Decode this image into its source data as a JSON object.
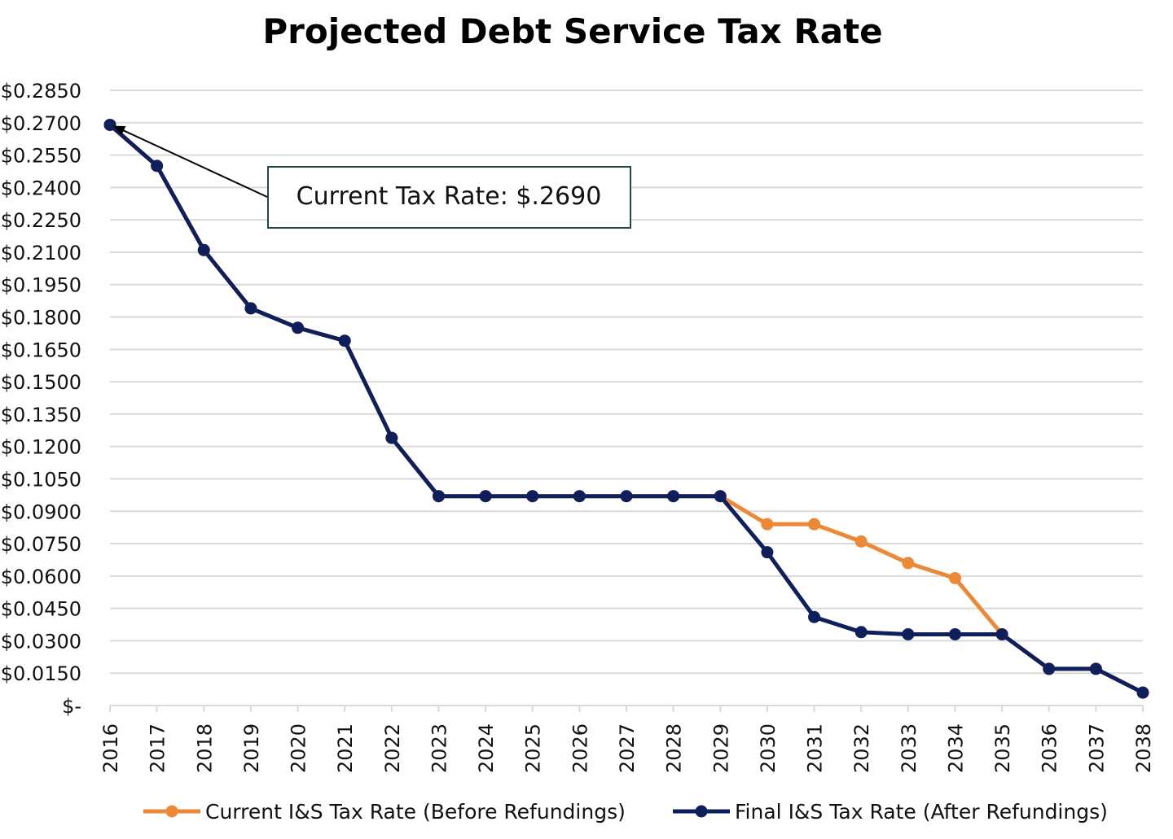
{
  "chart_data": {
    "type": "line",
    "title": "Projected Debt Service Tax Rate",
    "xlabel": "",
    "ylabel": "",
    "categories": [
      "2016",
      "2017",
      "2018",
      "2019",
      "2020",
      "2021",
      "2022",
      "2023",
      "2024",
      "2025",
      "2026",
      "2027",
      "2028",
      "2029",
      "2030",
      "2031",
      "2032",
      "2033",
      "2034",
      "2035",
      "2036",
      "2037",
      "2038"
    ],
    "ylim": [
      0,
      0.285
    ],
    "yticks": [
      0,
      0.015,
      0.03,
      0.045,
      0.06,
      0.075,
      0.09,
      0.105,
      0.12,
      0.135,
      0.15,
      0.165,
      0.18,
      0.195,
      0.21,
      0.225,
      0.24,
      0.255,
      0.27,
      0.285
    ],
    "ytick_labels": [
      "$-",
      "$0.0150",
      "$0.0300",
      "$0.0450",
      "$0.0600",
      "$0.0750",
      "$0.0900",
      "$0.1050",
      "$0.1200",
      "$0.1350",
      "$0.1500",
      "$0.1650",
      "$0.1800",
      "$0.1950",
      "$0.2100",
      "$0.2250",
      "$0.2400",
      "$0.2550",
      "$0.2700",
      "$0.2850"
    ],
    "grid": true,
    "legend_position": "bottom",
    "series": [
      {
        "name": "Current I&S Tax Rate (Before Refundings)",
        "color": "#ED8936",
        "values": [
          0.269,
          0.25,
          0.211,
          0.184,
          0.175,
          0.169,
          0.124,
          0.097,
          0.097,
          0.097,
          0.097,
          0.097,
          0.097,
          0.097,
          0.084,
          0.084,
          0.076,
          0.066,
          0.059,
          0.033,
          0.017,
          0.017,
          0.006
        ]
      },
      {
        "name": "Final I&S Tax Rate (After Refundings)",
        "color": "#0F1F5C",
        "values": [
          0.269,
          0.25,
          0.211,
          0.184,
          0.175,
          0.169,
          0.124,
          0.097,
          0.097,
          0.097,
          0.097,
          0.097,
          0.097,
          0.097,
          0.071,
          0.041,
          0.034,
          0.033,
          0.033,
          0.033,
          0.017,
          0.017,
          0.006
        ]
      }
    ],
    "annotation": {
      "text": "Current Tax Rate: $.2690",
      "points_to_category": "2016",
      "points_to_value": 0.269
    }
  }
}
